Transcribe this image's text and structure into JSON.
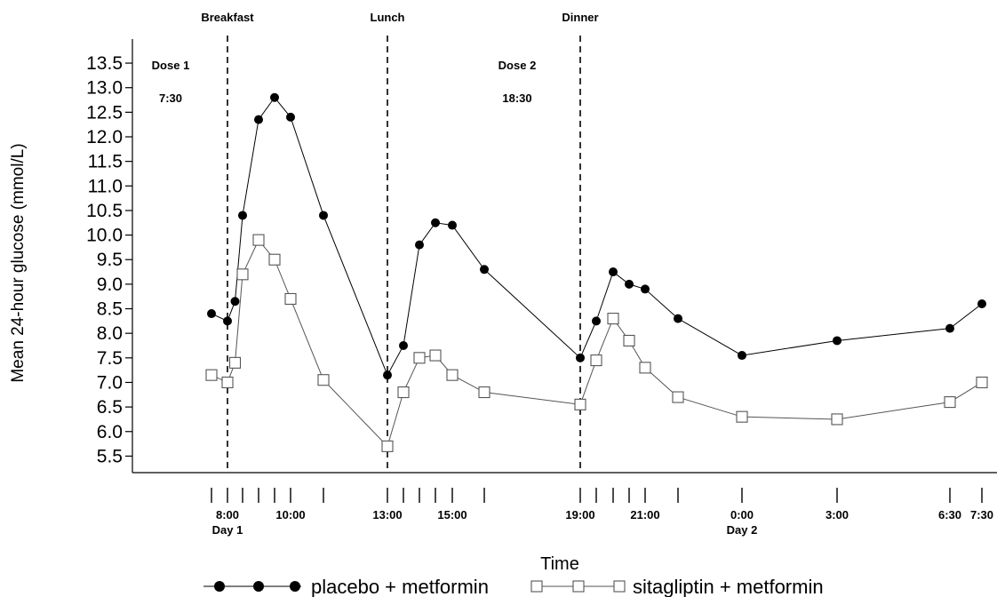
{
  "chart_data": {
    "type": "line",
    "xlabel": "Time",
    "ylabel": "Mean  24-hour glucose (mmol/L)",
    "ylim": [
      5.2,
      13.7
    ],
    "yticks": [
      "5.5",
      "6.0",
      "6.5",
      "7.0",
      "7.5",
      "8.0",
      "8.5",
      "9.0",
      "9.5",
      "10.0",
      "10.5",
      "11.0",
      "11.5",
      "12.0",
      "12.5",
      "13.0",
      "13.5"
    ],
    "xtick_labels": [
      {
        "x": "8:00",
        "label": "8:00",
        "sub": "Day 1"
      },
      {
        "x": "10:00",
        "label": "10:00"
      },
      {
        "x": "13:00",
        "label": "13:00"
      },
      {
        "x": "15:00",
        "label": "15:00"
      },
      {
        "x": "19:00",
        "label": "19:00"
      },
      {
        "x": "21:00",
        "label": "21:00"
      },
      {
        "x": "24:00",
        "label": "0:00",
        "sub": "Day 2"
      },
      {
        "x": "27:00",
        "label": "3:00"
      },
      {
        "x": "30:30",
        "label": "6:30"
      },
      {
        "x": "31:30",
        "label": "7:30"
      }
    ],
    "xticks_minor": [
      "7:30",
      "8:00",
      "8:30",
      "9:00",
      "9:30",
      "10:00",
      "11:00",
      "13:00",
      "13:30",
      "14:00",
      "14:30",
      "15:00",
      "16:00",
      "19:00",
      "19:30",
      "20:00",
      "20:30",
      "21:00",
      "22:00",
      "24:00",
      "27:00",
      "30:30",
      "31:30"
    ],
    "meal_lines": [
      {
        "x": "8:00",
        "label": "Breakfast"
      },
      {
        "x": "13:00",
        "label": "Lunch"
      },
      {
        "x": "19:00",
        "label": "Dinner"
      }
    ],
    "annotations": [
      {
        "text": "Dose 1",
        "time": "7:30"
      },
      {
        "text": "Dose 2",
        "time": "18:30"
      }
    ],
    "legend_position": "bottom",
    "series": [
      {
        "name": "placebo + metformin",
        "marker": "filled-circle",
        "color": "#000000",
        "x": [
          "7:30",
          "8:00",
          "8:15",
          "8:30",
          "9:00",
          "9:30",
          "10:00",
          "11:00",
          "13:00",
          "13:30",
          "14:00",
          "14:30",
          "15:00",
          "16:00",
          "19:00",
          "19:30",
          "20:00",
          "20:30",
          "21:00",
          "22:00",
          "24:00",
          "27:00",
          "30:30",
          "31:30"
        ],
        "values": [
          8.4,
          8.25,
          8.65,
          10.4,
          12.35,
          12.8,
          12.4,
          10.4,
          7.15,
          7.75,
          9.8,
          10.25,
          10.2,
          9.3,
          7.5,
          8.25,
          9.25,
          9.0,
          8.9,
          8.3,
          7.55,
          7.85,
          8.1,
          8.6
        ]
      },
      {
        "name": "sitagliptin + metformin",
        "marker": "open-square",
        "color": "#555555",
        "x": [
          "7:30",
          "8:00",
          "8:15",
          "8:30",
          "9:00",
          "9:30",
          "10:00",
          "11:00",
          "13:00",
          "13:30",
          "14:00",
          "14:30",
          "15:00",
          "16:00",
          "19:00",
          "19:30",
          "20:00",
          "20:30",
          "21:00",
          "22:00",
          "24:00",
          "27:00",
          "30:30",
          "31:30"
        ],
        "values": [
          7.15,
          7.0,
          7.4,
          9.2,
          9.9,
          9.5,
          8.7,
          7.05,
          5.7,
          6.8,
          7.5,
          7.55,
          7.15,
          6.8,
          6.55,
          7.45,
          8.3,
          7.85,
          7.3,
          6.7,
          6.3,
          6.25,
          6.6,
          7.0
        ]
      }
    ]
  }
}
